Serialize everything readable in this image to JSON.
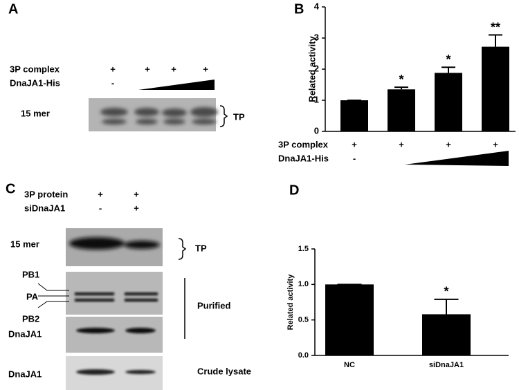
{
  "panels": {
    "a": "A",
    "b": "B",
    "c": "C",
    "d": "D"
  },
  "blot_a": {
    "rows": [
      {
        "label": "3P complex",
        "signs": [
          "+",
          "+",
          "+",
          "+"
        ]
      },
      {
        "label": "DnaJA1-His",
        "signs": [
          "-"
        ]
      }
    ],
    "band_label": "15 mer",
    "bracket_label": "TP"
  },
  "blot_c": {
    "rows": [
      {
        "label": "3P protein",
        "signs": [
          "+",
          "+"
        ]
      },
      {
        "label": "siDnaJA1",
        "signs": [
          "-",
          "+"
        ]
      }
    ],
    "band_label": "15 mer",
    "bracket_label": "TP",
    "pb1": "PB1",
    "pa": "PA",
    "pb2": "PB2",
    "dnaja1": "DnaJA1",
    "purified": "Purified",
    "crude_band": "DnaJA1",
    "crude": "Crude lysate"
  },
  "chart_data": [
    {
      "type": "bar",
      "ylabel": "Related activity",
      "categories": [
        null,
        null,
        null,
        null
      ],
      "values": [
        1.0,
        1.35,
        1.88,
        2.72
      ],
      "errors": [
        0,
        0.07,
        0.18,
        0.38
      ],
      "annotations": [
        null,
        "*",
        "*",
        "**"
      ],
      "color": "#000000",
      "ylim": [
        0,
        4
      ],
      "yticks": [
        0,
        1,
        2,
        3,
        4
      ],
      "conditions": [
        {
          "label": "3P complex",
          "signs": [
            "+",
            "+",
            "+",
            "+"
          ]
        },
        {
          "label": "DnaJA1-His",
          "signs": [
            "-"
          ]
        }
      ]
    },
    {
      "type": "bar",
      "ylabel": "Related activity",
      "categories": [
        "NC",
        "siDnaJA1"
      ],
      "values": [
        1.0,
        0.58
      ],
      "errors": [
        0,
        0.21
      ],
      "annotations": [
        null,
        "*"
      ],
      "color": "#000000",
      "ylim": [
        0,
        1.5
      ],
      "yticks": [
        {
          "value": 0,
          "label": "0.0"
        },
        {
          "value": 0.5,
          "label": "0.5"
        },
        {
          "value": 1,
          "label": "1.0"
        },
        {
          "value": 1.5,
          "label": "1.5"
        }
      ]
    }
  ]
}
